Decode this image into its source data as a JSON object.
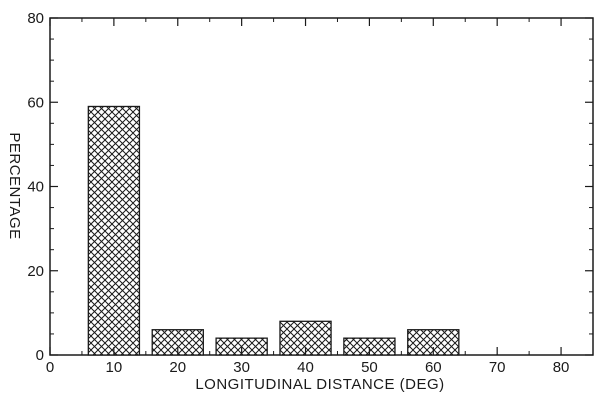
{
  "chart_data": {
    "type": "bar",
    "xlabel": "LONGITUDINAL DISTANCE (DEG)",
    "ylabel": "PERCENTAGE",
    "x": [
      10,
      20,
      30,
      40,
      50,
      60
    ],
    "values": [
      59,
      6,
      4,
      8,
      4,
      6
    ],
    "bin_width": 8,
    "xlim": [
      0,
      85
    ],
    "ylim": [
      0,
      80
    ],
    "xticks": [
      0,
      10,
      20,
      30,
      40,
      50,
      60,
      70,
      80
    ],
    "yticks": [
      0,
      20,
      40,
      60,
      80
    ],
    "grid": false,
    "legend": "none",
    "bar_fill": "crosshatch",
    "colors": {
      "ink": "#1a1a1a",
      "background": "#ffffff"
    }
  }
}
